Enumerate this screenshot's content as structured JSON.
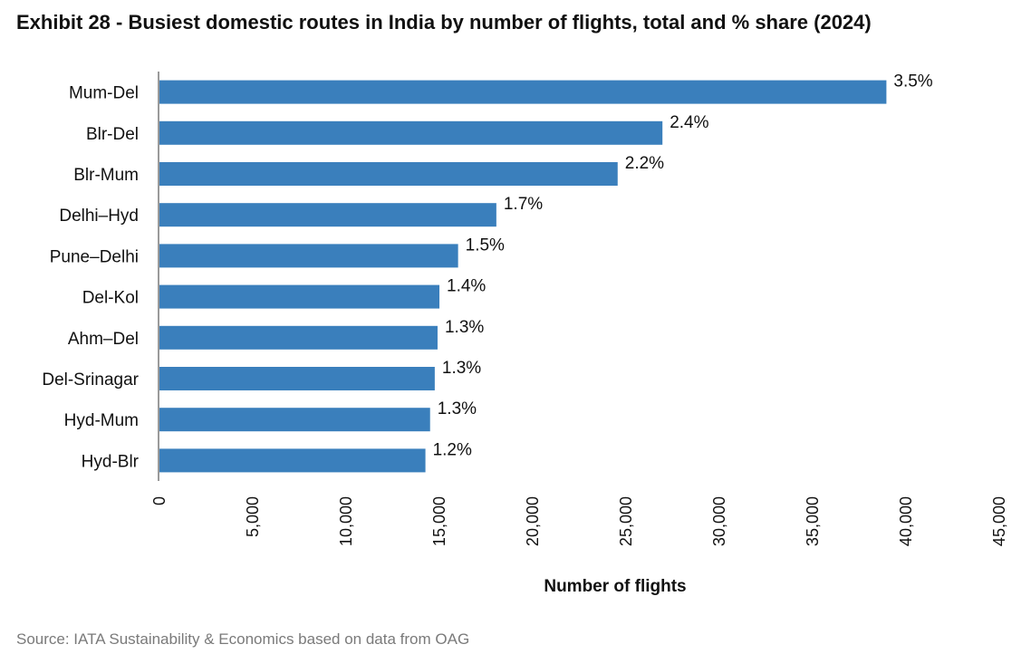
{
  "title": "Exhibit 28 - Busiest domestic routes in India by number of flights, total and % share (2024)",
  "source": "Source: IATA Sustainability & Economics based on data from OAG",
  "chart_data": {
    "type": "bar",
    "orientation": "horizontal",
    "title": "Exhibit 28 - Busiest domestic routes in India by number of flights, total and % share (2024)",
    "categories": [
      "Mum-Del",
      "Blr-Del",
      "Blr-Mum",
      "Delhi–Hyd",
      "Pune–Delhi",
      "Del-Kol",
      "Ahm–Del",
      "Del-Srinagar",
      "Hyd-Mum",
      "Hyd-Blr"
    ],
    "values": [
      39000,
      27000,
      24600,
      18100,
      16050,
      15050,
      14950,
      14800,
      14550,
      14300
    ],
    "data_labels": [
      "3.5%",
      "2.4%",
      "2.2%",
      "1.7%",
      "1.5%",
      "1.4%",
      "1.3%",
      "1.3%",
      "1.3%",
      "1.2%"
    ],
    "xlabel": "Number of flights",
    "ylabel": "",
    "xlim": [
      0,
      45000
    ],
    "xticks": [
      0,
      5000,
      10000,
      15000,
      20000,
      25000,
      30000,
      35000,
      40000,
      45000
    ],
    "xtick_labels": [
      "0",
      "5,000",
      "10,000",
      "15,000",
      "20,000",
      "25,000",
      "30,000",
      "35,000",
      "40,000",
      "45,000"
    ],
    "grid": false,
    "legend": "none",
    "bar_color": "#3a7fbc"
  }
}
